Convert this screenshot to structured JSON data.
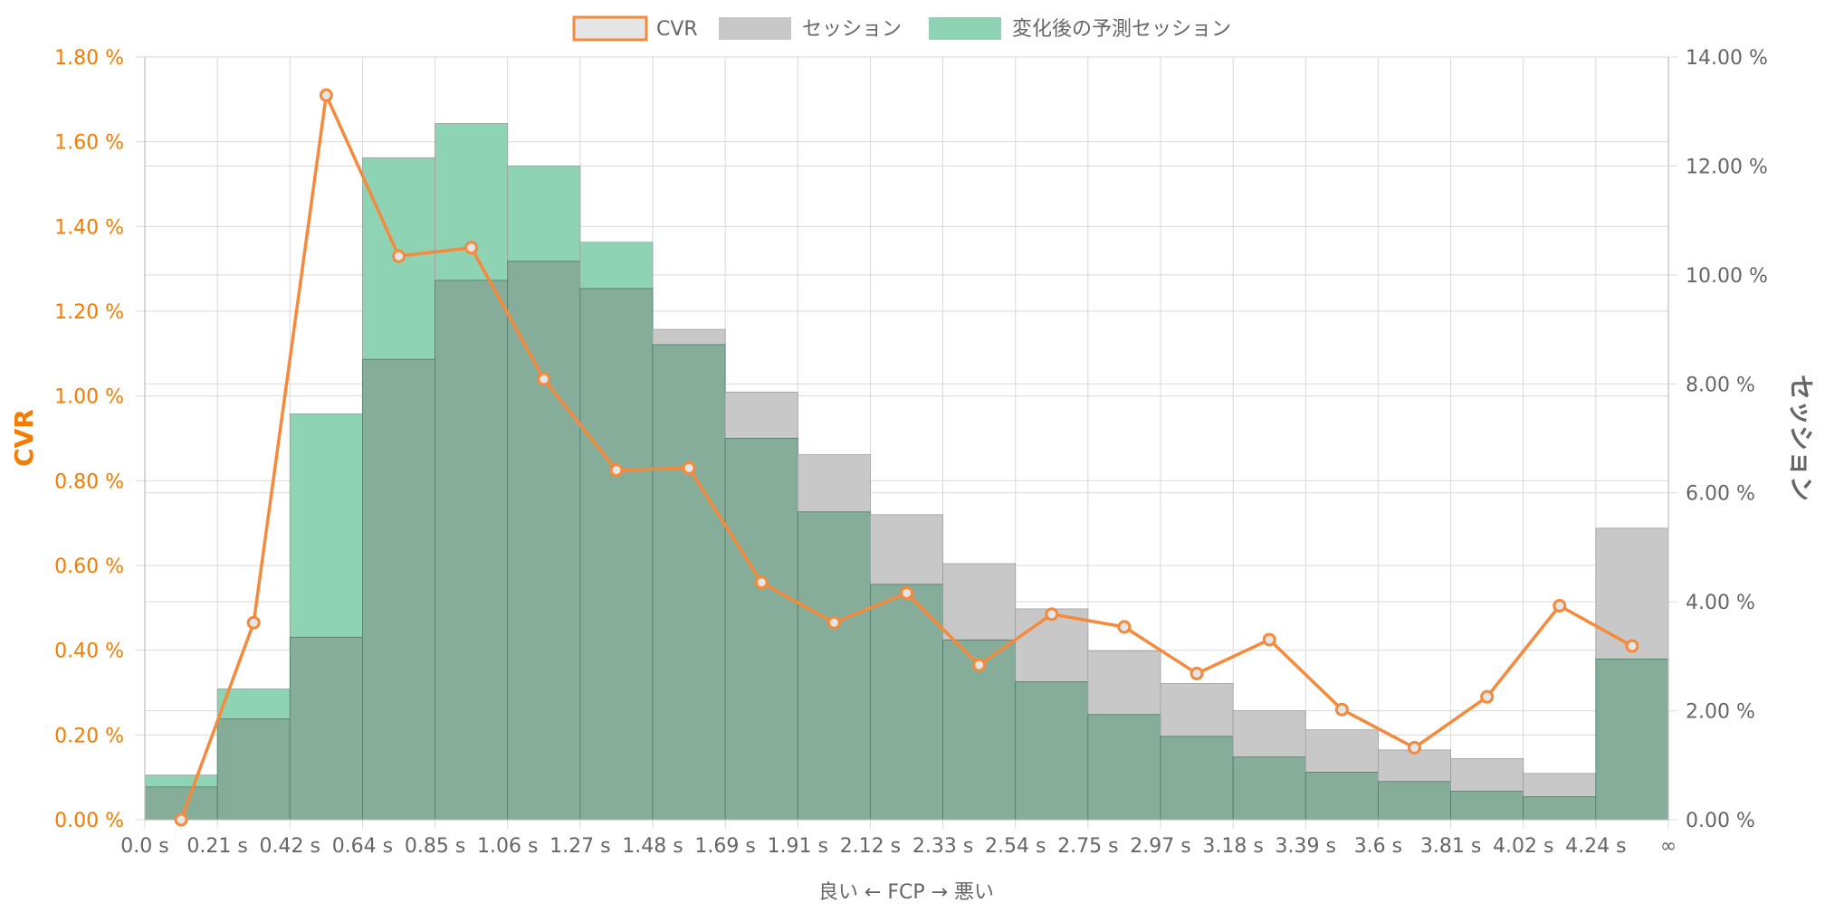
{
  "chart_data": {
    "type": "bar",
    "legend": {
      "position": "top",
      "items": [
        {
          "label": "CVR",
          "kind": "line"
        },
        {
          "label": "セッション",
          "kind": "bar"
        },
        {
          "label": "変化後の予測セッション",
          "kind": "bar"
        }
      ]
    },
    "xlabel": "良い ← FCP → 悪い",
    "y_left_label": "CVR",
    "y_right_label": "セッション",
    "x_ticks": [
      "0.0 s",
      "0.21 s",
      "0.42 s",
      "0.64 s",
      "0.85 s",
      "1.06 s",
      "1.27 s",
      "1.48 s",
      "1.69 s",
      "1.91 s",
      "2.12 s",
      "2.33 s",
      "2.54 s",
      "2.75 s",
      "2.97 s",
      "3.18 s",
      "3.39 s",
      "3.6 s",
      "3.81 s",
      "4.02 s",
      "4.24 s",
      "∞"
    ],
    "y_left_ticks": [
      "0.00 %",
      "0.20 %",
      "0.40 %",
      "0.60 %",
      "0.80 %",
      "1.00 %",
      "1.20 %",
      "1.40 %",
      "1.60 %",
      "1.80 %"
    ],
    "y_right_ticks": [
      "0.00 %",
      "2.00 %",
      "4.00 %",
      "6.00 %",
      "8.00 %",
      "10.00 %",
      "12.00 %",
      "14.00 %"
    ],
    "ylim_left": [
      0,
      1.8
    ],
    "ylim_right": [
      0,
      14
    ],
    "grid": true,
    "series": [
      {
        "name": "セッション",
        "axis": "right",
        "color": "#c8c8c8",
        "values": [
          0.6,
          1.85,
          3.35,
          8.45,
          9.9,
          10.25,
          9.75,
          9.0,
          7.85,
          6.7,
          5.6,
          4.7,
          3.87,
          3.1,
          2.5,
          2.0,
          1.65,
          1.28,
          1.12,
          0.85,
          5.35
        ]
      },
      {
        "name": "変化後の予測セッション",
        "axis": "right",
        "color": "#8fd3b5",
        "values": [
          0.82,
          2.4,
          7.45,
          12.15,
          12.78,
          12.0,
          10.6,
          8.72,
          7.0,
          5.65,
          4.32,
          3.3,
          2.53,
          1.93,
          1.53,
          1.15,
          0.87,
          0.7,
          0.52,
          0.42,
          2.95
        ]
      },
      {
        "name": "CVR",
        "axis": "left",
        "color": "#f58a3c",
        "values": [
          0.0,
          0.465,
          1.71,
          1.33,
          1.35,
          1.04,
          0.825,
          0.83,
          0.56,
          0.465,
          0.535,
          0.365,
          0.485,
          0.455,
          0.345,
          0.425,
          0.26,
          0.17,
          0.29,
          0.505,
          0.41
        ]
      }
    ],
    "colors": {
      "cvr_line": "#f58a3c",
      "cvr_legend_fill": "#e6e6e6",
      "session_bar": "#c8c8c8",
      "predicted_bar": "#8fd3b5",
      "overlap_bar": "#86ad9a",
      "left_axis_text": "#f57c00"
    }
  }
}
